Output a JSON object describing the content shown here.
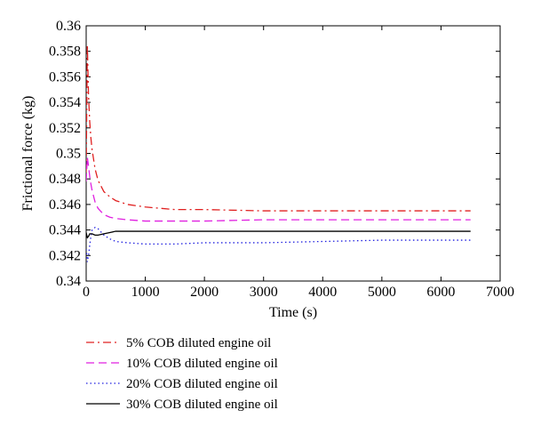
{
  "chart_data": {
    "type": "line",
    "xlabel": "Time (s)",
    "ylabel": "Frictional force (kg)",
    "xlim": [
      0,
      7000
    ],
    "ylim": [
      0.34,
      0.36
    ],
    "xticks": [
      0,
      1000,
      2000,
      3000,
      4000,
      5000,
      6000,
      7000
    ],
    "yticks": [
      0.34,
      0.342,
      0.344,
      0.346,
      0.348,
      0.35,
      0.352,
      0.354,
      0.356,
      0.358,
      0.36
    ],
    "xtick_labels": [
      "0",
      "1000",
      "2000",
      "3000",
      "4000",
      "5000",
      "6000",
      "7000"
    ],
    "ytick_labels": [
      "0.34",
      "0.342",
      "0.344",
      "0.346",
      "0.348",
      "0.35",
      "0.352",
      "0.354",
      "0.356",
      "0.358",
      "0.36"
    ],
    "grid": false,
    "legend_position": "below",
    "series": [
      {
        "name": "5% COB diluted engine oil",
        "color": "#e02020",
        "dash": "dashdot",
        "x": [
          0,
          20,
          40,
          60,
          80,
          100,
          150,
          200,
          300,
          400,
          500,
          700,
          1000,
          1500,
          2000,
          3000,
          4000,
          5000,
          6000,
          6500
        ],
        "y": [
          0.3485,
          0.3585,
          0.3545,
          0.3525,
          0.3512,
          0.3503,
          0.3488,
          0.3479,
          0.347,
          0.3466,
          0.3463,
          0.346,
          0.3458,
          0.3456,
          0.3456,
          0.3455,
          0.3455,
          0.3455,
          0.3455,
          0.3455
        ]
      },
      {
        "name": "10% COB diluted engine oil",
        "color": "#e020e0",
        "dash": "dashed",
        "x": [
          0,
          20,
          40,
          60,
          80,
          100,
          150,
          200,
          300,
          400,
          500,
          700,
          1000,
          1500,
          2000,
          3000,
          4000,
          5000,
          6000,
          6500
        ],
        "y": [
          0.3478,
          0.3497,
          0.349,
          0.3482,
          0.3476,
          0.3471,
          0.3462,
          0.3457,
          0.3452,
          0.345,
          0.3449,
          0.3448,
          0.3447,
          0.3447,
          0.3447,
          0.3448,
          0.3448,
          0.3448,
          0.3448,
          0.3448
        ]
      },
      {
        "name": "20% COB diluted engine oil",
        "color": "#2020e0",
        "dash": "dotted",
        "x": [
          0,
          20,
          40,
          60,
          80,
          100,
          150,
          200,
          300,
          400,
          500,
          700,
          1000,
          1500,
          2000,
          3000,
          4000,
          5000,
          6000,
          6500
        ],
        "y": [
          0.3425,
          0.3415,
          0.342,
          0.3428,
          0.3435,
          0.344,
          0.3442,
          0.3441,
          0.3436,
          0.3433,
          0.3431,
          0.343,
          0.3429,
          0.3429,
          0.343,
          0.343,
          0.3431,
          0.3432,
          0.3432,
          0.3432
        ]
      },
      {
        "name": "30% COB diluted engine oil",
        "color": "#000000",
        "dash": "solid",
        "x": [
          0,
          20,
          40,
          60,
          80,
          100,
          150,
          200,
          300,
          400,
          500,
          700,
          1000,
          1500,
          2000,
          3000,
          4000,
          5000,
          6000,
          6500
        ],
        "y": [
          0.3438,
          0.3434,
          0.3435,
          0.3437,
          0.3437,
          0.3437,
          0.3436,
          0.3436,
          0.3437,
          0.3438,
          0.3439,
          0.3439,
          0.3439,
          0.3439,
          0.3439,
          0.3439,
          0.3439,
          0.3439,
          0.3439,
          0.3439
        ]
      }
    ]
  }
}
